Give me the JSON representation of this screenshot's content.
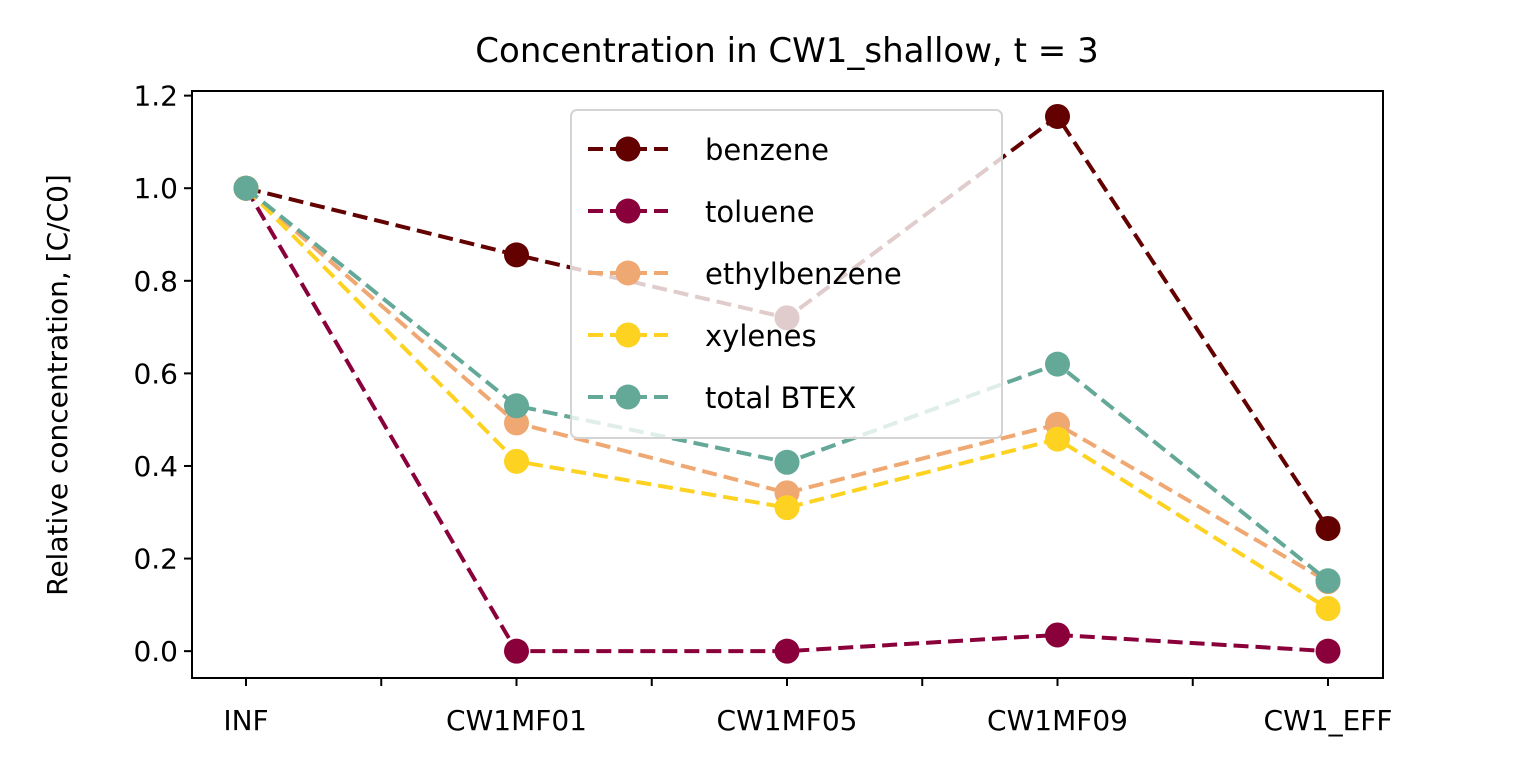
{
  "chart_data": {
    "type": "line",
    "title": "Concentration in CW1_shallow, t = 3",
    "xlabel": "",
    "ylabel": "Relative concentration, [C/C0]",
    "categories": [
      "INF",
      "CW1MF01",
      "CW1MF05",
      "CW1MF09",
      "CW1_EFF"
    ],
    "ylim": [
      -0.058,
      1.21
    ],
    "yticks": [
      "0.0",
      "0.2",
      "0.4",
      "0.6",
      "0.8",
      "1.0",
      "1.2"
    ],
    "grid": false,
    "legend_position": "upper center",
    "series": [
      {
        "name": "benzene",
        "color": "#630000",
        "values": [
          1.0,
          0.856,
          0.72,
          1.155,
          0.265
        ]
      },
      {
        "name": "toluene",
        "color": "#8a003a",
        "values": [
          1.0,
          0.0,
          0.0,
          0.035,
          0.0
        ]
      },
      {
        "name": "ethylbenzene",
        "color": "#f0a872",
        "values": [
          1.0,
          0.493,
          0.342,
          0.49,
          0.15
        ]
      },
      {
        "name": "xylenes",
        "color": "#fdd221",
        "values": [
          1.0,
          0.41,
          0.31,
          0.458,
          0.092
        ]
      },
      {
        "name": "total BTEX",
        "color": "#64a898",
        "values": [
          1.0,
          0.53,
          0.408,
          0.62,
          0.152
        ]
      }
    ]
  }
}
